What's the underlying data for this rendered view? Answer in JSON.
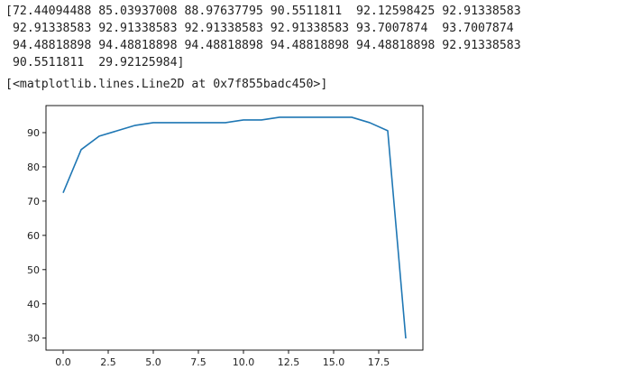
{
  "output": {
    "array_lines": [
      "[72.44094488 85.03937008 88.97637795 90.5511811  92.12598425 92.91338583",
      " 92.91338583 92.91338583 92.91338583 92.91338583 93.7007874  93.7007874",
      " 94.48818898 94.48818898 94.48818898 94.48818898 94.48818898 92.91338583",
      " 90.5511811  29.92125984]"
    ],
    "repr_line": "[<matplotlib.lines.Line2D at 0x7f855badc450>]"
  },
  "chart_data": {
    "type": "line",
    "x": [
      0,
      1,
      2,
      3,
      4,
      5,
      6,
      7,
      8,
      9,
      10,
      11,
      12,
      13,
      14,
      15,
      16,
      17,
      18,
      19
    ],
    "series": [
      {
        "values": [
          72.44094488,
          85.03937008,
          88.97637795,
          90.5511811,
          92.12598425,
          92.91338583,
          92.91338583,
          92.91338583,
          92.91338583,
          92.91338583,
          93.7007874,
          93.7007874,
          94.48818898,
          94.48818898,
          94.48818898,
          94.48818898,
          94.48818898,
          92.91338583,
          90.5511811,
          29.92125984
        ],
        "color": "#1f77b4"
      }
    ],
    "xlim": [
      -0.95,
      19.95
    ],
    "ylim": [
      26.5,
      97.9
    ],
    "xticks": [
      0.0,
      2.5,
      5.0,
      7.5,
      10.0,
      12.5,
      15.0,
      17.5
    ],
    "xtick_labels": [
      "0.0",
      "2.5",
      "5.0",
      "7.5",
      "10.0",
      "12.5",
      "15.0",
      "17.5"
    ],
    "yticks": [
      30,
      40,
      50,
      60,
      70,
      80,
      90
    ],
    "ytick_labels": [
      "30",
      "40",
      "50",
      "60",
      "70",
      "80",
      "90"
    ],
    "grid": false,
    "title": "",
    "xlabel": "",
    "ylabel": ""
  }
}
